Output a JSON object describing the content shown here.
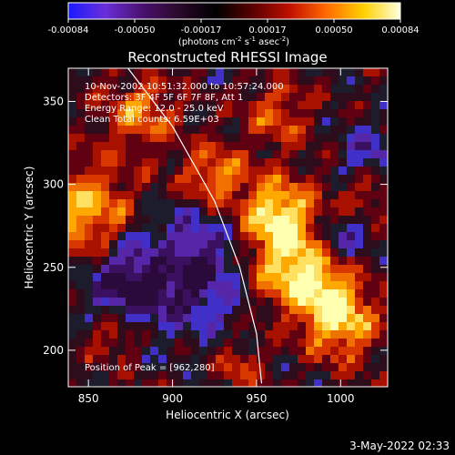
{
  "colorbar": {
    "tick_labels": [
      "-0.00084",
      "-0.00050",
      "-0.00017",
      "0.00017",
      "0.00050",
      "0.00084"
    ],
    "range": [
      -0.00084,
      0.00084
    ],
    "unit_prefix": "(photons cm",
    "unit_exp1": "-2",
    "unit_mid": " s",
    "unit_exp2": "-1",
    "unit_mid2": " asec",
    "unit_exp3": "-2",
    "unit_suffix": ")",
    "colors": [
      "#1a1aff",
      "#6a2fd9",
      "#4a1070",
      "#2a0a2a",
      "#000000",
      "#5a0000",
      "#c01000",
      "#ff6a00",
      "#ffd000",
      "#ffffe0"
    ]
  },
  "chart_data": {
    "type": "heatmap",
    "title": "Reconstructed RHESSI Image",
    "xlabel": "Heliocentric X (arcsec)",
    "ylabel": "Heliocentric Y (arcsec)",
    "x_ticks": [
      "850",
      "900",
      "950",
      "1000"
    ],
    "x_tick_values": [
      850,
      900,
      950,
      1000
    ],
    "y_ticks": [
      "200",
      "250",
      "300",
      "350"
    ],
    "y_tick_values": [
      200,
      250,
      300,
      350
    ],
    "xlim": [
      838,
      1028
    ],
    "ylim": [
      178,
      370
    ],
    "info_lines": [
      "10-Nov-2002 10:51:32.000 to 10:57:24.000",
      "Detectors: 3F 4F 5F 6F 7F 8F, Att 1",
      "Energy Range: 12.0 - 25.0 keV",
      "Clean     Total counts: 6.59E+03"
    ],
    "peak_label": "Position of Peak = [962,280]",
    "peak_position": [
      962,
      280
    ],
    "limb_curve": [
      [
        872,
        372
      ],
      [
        900,
        335
      ],
      [
        925,
        290
      ],
      [
        940,
        250
      ],
      [
        950,
        210
      ],
      [
        953,
        180
      ]
    ]
  },
  "footer": {
    "date": "3-May-2022 02:33"
  }
}
